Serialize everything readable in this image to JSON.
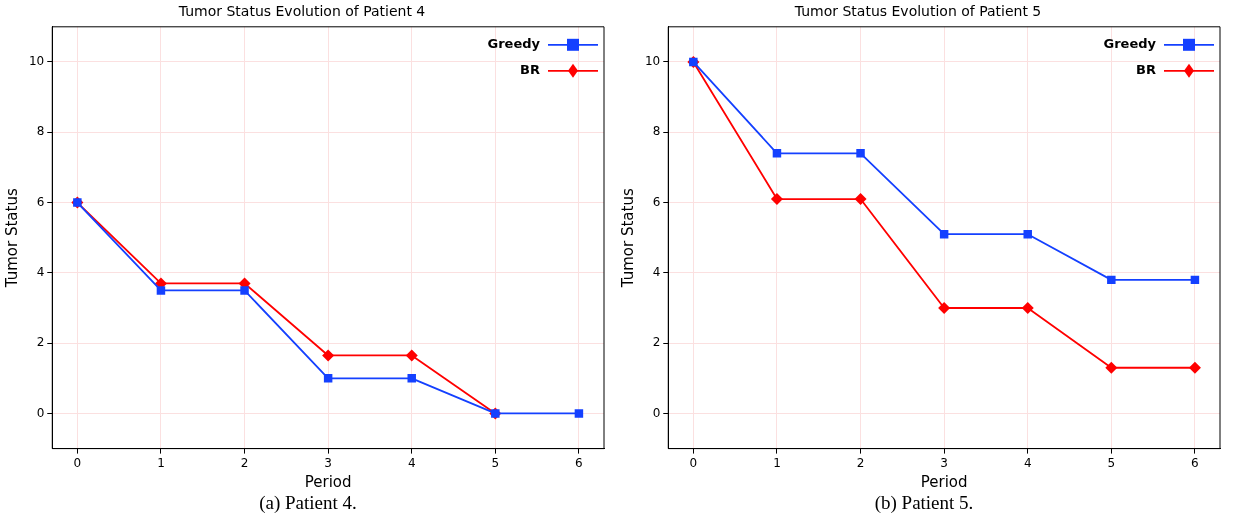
{
  "chart_data": [
    {
      "type": "line",
      "title": "Tumor Status Evolution of Patient 4",
      "xlabel": "Period",
      "ylabel": "Tumor Status",
      "x": [
        0,
        1,
        2,
        3,
        4,
        5,
        6
      ],
      "xlim": [
        -0.3,
        6.3
      ],
      "xticks": [
        0,
        1,
        2,
        3,
        4,
        5,
        6
      ],
      "ylim": [
        -1,
        11
      ],
      "yticks": [
        0,
        2,
        4,
        6,
        8,
        10
      ],
      "grid": true,
      "legend": "top right",
      "line_style": "solid",
      "series": [
        {
          "name": "Greedy",
          "color": "#1440ff",
          "marker": "square",
          "values": [
            6,
            3.5,
            3.5,
            1,
            1,
            0,
            0
          ]
        },
        {
          "name": "BR",
          "color": "#ff0000",
          "marker": "diamond",
          "values": [
            6,
            3.7,
            3.7,
            1.65,
            1.65,
            0,
            null
          ]
        }
      ],
      "annotations": [
        "(a) Patient 4."
      ]
    },
    {
      "type": "line",
      "title": "Tumor Status Evolution of Patient 5",
      "xlabel": "Period",
      "ylabel": "Tumor Status",
      "x": [
        0,
        1,
        2,
        3,
        4,
        5,
        6
      ],
      "xlim": [
        -0.3,
        6.3
      ],
      "xticks": [
        0,
        1,
        2,
        3,
        4,
        5,
        6
      ],
      "ylim": [
        -1,
        11
      ],
      "yticks": [
        0,
        2,
        4,
        6,
        8,
        10
      ],
      "grid": true,
      "legend": "top right",
      "line_style": "solid",
      "series": [
        {
          "name": "Greedy",
          "color": "#1440ff",
          "marker": "square",
          "values": [
            10,
            7.4,
            7.4,
            5.1,
            5.1,
            3.8,
            3.8
          ]
        },
        {
          "name": "BR",
          "color": "#ff0000",
          "marker": "diamond",
          "values": [
            10,
            6.1,
            6.1,
            3.0,
            3.0,
            1.3,
            1.3
          ]
        }
      ],
      "annotations": [
        "(b) Patient 5."
      ]
    }
  ]
}
